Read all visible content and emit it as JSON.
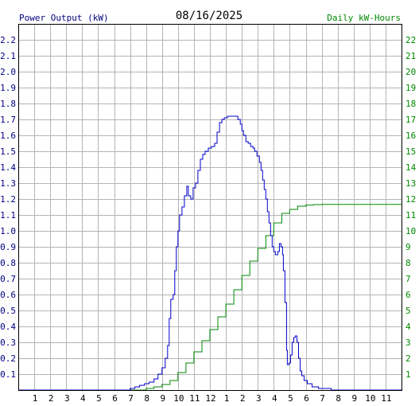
{
  "chart_data": {
    "type": "line",
    "title": "08/16/2025",
    "ylabel_left": "Power Output (kW)",
    "ylabel_right": "Daily kW-Hours",
    "x_ticks": [
      "1",
      "2",
      "3",
      "4",
      "5",
      "6",
      "7",
      "8",
      "9",
      "10",
      "11",
      "12",
      "1",
      "2",
      "3",
      "4",
      "5",
      "6",
      "7",
      "8",
      "9",
      "10",
      "11"
    ],
    "y_left_ticks": [
      "0.1",
      "0.2",
      "0.3",
      "0.4",
      "0.5",
      "0.6",
      "0.7",
      "0.8",
      "0.9",
      "1.0",
      "1.1",
      "1.2",
      "1.3",
      "1.4",
      "1.5",
      "1.6",
      "1.7",
      "1.8",
      "1.9",
      "2.0",
      "2.1",
      "2.2"
    ],
    "y_right_ticks": [
      "1",
      "2",
      "3",
      "4",
      "5",
      "6",
      "7",
      "8",
      "9",
      "10",
      "11",
      "12",
      "13",
      "14",
      "15",
      "16",
      "17",
      "18",
      "19",
      "20",
      "21",
      "22"
    ],
    "x_range": [
      0,
      24
    ],
    "y_left_range": [
      0,
      2.3
    ],
    "y_right_range": [
      0,
      23
    ],
    "grid": true,
    "colors": {
      "power": "#0000cc",
      "energy": "#008800",
      "grid": "#b4b4b4",
      "left_axis_text": "#000080",
      "right_axis_text": "#008800"
    },
    "series": [
      {
        "axis": "left",
        "points": [
          [
            0,
            0
          ],
          [
            6.8,
            0
          ],
          [
            7.0,
            0.01
          ],
          [
            7.3,
            0.02
          ],
          [
            7.6,
            0.03
          ],
          [
            7.9,
            0.04
          ],
          [
            8.2,
            0.05
          ],
          [
            8.5,
            0.07
          ],
          [
            8.75,
            0.1
          ],
          [
            9.0,
            0.14
          ],
          [
            9.2,
            0.2
          ],
          [
            9.35,
            0.28
          ],
          [
            9.45,
            0.45
          ],
          [
            9.55,
            0.57
          ],
          [
            9.7,
            0.6
          ],
          [
            9.8,
            0.75
          ],
          [
            9.9,
            0.9
          ],
          [
            10.0,
            1.0
          ],
          [
            10.1,
            1.1
          ],
          [
            10.25,
            1.15
          ],
          [
            10.4,
            1.22
          ],
          [
            10.55,
            1.28
          ],
          [
            10.65,
            1.22
          ],
          [
            10.8,
            1.2
          ],
          [
            10.95,
            1.27
          ],
          [
            11.1,
            1.3
          ],
          [
            11.25,
            1.38
          ],
          [
            11.4,
            1.45
          ],
          [
            11.55,
            1.48
          ],
          [
            11.7,
            1.5
          ],
          [
            11.9,
            1.52
          ],
          [
            12.1,
            1.53
          ],
          [
            12.3,
            1.55
          ],
          [
            12.45,
            1.62
          ],
          [
            12.6,
            1.68
          ],
          [
            12.75,
            1.7
          ],
          [
            12.9,
            1.71
          ],
          [
            13.1,
            1.72
          ],
          [
            13.4,
            1.72
          ],
          [
            13.6,
            1.72
          ],
          [
            13.75,
            1.7
          ],
          [
            13.9,
            1.67
          ],
          [
            14.0,
            1.63
          ],
          [
            14.1,
            1.6
          ],
          [
            14.25,
            1.56
          ],
          [
            14.4,
            1.55
          ],
          [
            14.55,
            1.53
          ],
          [
            14.7,
            1.52
          ],
          [
            14.8,
            1.5
          ],
          [
            14.95,
            1.47
          ],
          [
            15.1,
            1.43
          ],
          [
            15.2,
            1.38
          ],
          [
            15.3,
            1.32
          ],
          [
            15.4,
            1.26
          ],
          [
            15.5,
            1.2
          ],
          [
            15.6,
            1.12
          ],
          [
            15.7,
            1.05
          ],
          [
            15.8,
            0.97
          ],
          [
            15.9,
            0.9
          ],
          [
            16.0,
            0.87
          ],
          [
            16.1,
            0.85
          ],
          [
            16.25,
            0.87
          ],
          [
            16.35,
            0.92
          ],
          [
            16.45,
            0.9
          ],
          [
            16.55,
            0.85
          ],
          [
            16.6,
            0.75
          ],
          [
            16.7,
            0.55
          ],
          [
            16.8,
            0.25
          ],
          [
            16.85,
            0.16
          ],
          [
            16.95,
            0.17
          ],
          [
            17.05,
            0.22
          ],
          [
            17.15,
            0.3
          ],
          [
            17.25,
            0.33
          ],
          [
            17.35,
            0.34
          ],
          [
            17.45,
            0.3
          ],
          [
            17.55,
            0.2
          ],
          [
            17.65,
            0.12
          ],
          [
            17.75,
            0.09
          ],
          [
            17.9,
            0.06
          ],
          [
            18.1,
            0.04
          ],
          [
            18.4,
            0.02
          ],
          [
            18.8,
            0.01
          ],
          [
            19.2,
            0.01
          ],
          [
            19.6,
            0
          ],
          [
            24,
            0
          ]
        ]
      },
      {
        "axis": "right",
        "points": [
          [
            0,
            0
          ],
          [
            7.0,
            0
          ],
          [
            8.0,
            0.1
          ],
          [
            8.5,
            0.2
          ],
          [
            9.0,
            0.35
          ],
          [
            9.5,
            0.6
          ],
          [
            10.0,
            1.1
          ],
          [
            10.5,
            1.7
          ],
          [
            11.0,
            2.4
          ],
          [
            11.5,
            3.1
          ],
          [
            12.0,
            3.8
          ],
          [
            12.5,
            4.6
          ],
          [
            13.0,
            5.4
          ],
          [
            13.5,
            6.3
          ],
          [
            14.0,
            7.2
          ],
          [
            14.5,
            8.1
          ],
          [
            15.0,
            8.9
          ],
          [
            15.5,
            9.7
          ],
          [
            16.0,
            10.5
          ],
          [
            16.5,
            11.1
          ],
          [
            17.0,
            11.35
          ],
          [
            17.5,
            11.55
          ],
          [
            18.0,
            11.62
          ],
          [
            18.5,
            11.65
          ],
          [
            19.0,
            11.66
          ],
          [
            20.0,
            11.66
          ],
          [
            21.0,
            11.66
          ],
          [
            22.0,
            11.66
          ],
          [
            23.0,
            11.66
          ],
          [
            24,
            11.66
          ]
        ]
      }
    ]
  }
}
